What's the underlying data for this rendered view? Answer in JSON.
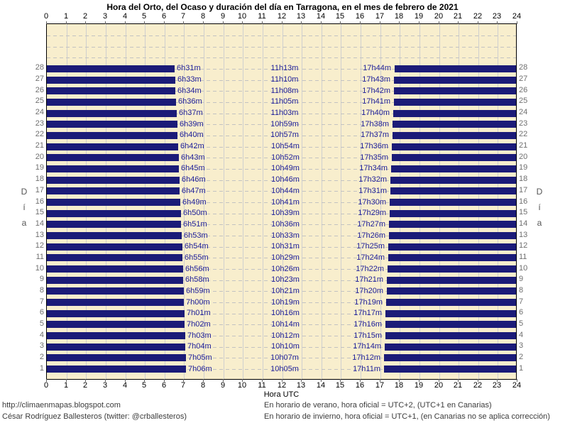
{
  "title": "Hora del Orto, del Ocaso y duración del día en Tarragona, en el mes de febrero de 2021",
  "axis": {
    "x_title_bottom": "Hora UTC",
    "side_label": "Día",
    "x_ticks": [
      0,
      1,
      2,
      3,
      4,
      5,
      6,
      7,
      8,
      9,
      10,
      11,
      12,
      13,
      14,
      15,
      16,
      17,
      18,
      19,
      20,
      21,
      22,
      23,
      24
    ]
  },
  "footer": {
    "url": "http://climaenmapas.blogspot.com",
    "author": "César Rodríguez Ballesteros (twitter: @crballesteros)",
    "note_summer": "En horario de verano, hora oficial = UTC+2, (UTC+1 en Canarias)",
    "note_winter": "En horario de invierno, hora oficial = UTC+1, (en Canarias no se aplica corrección)"
  },
  "colors": {
    "plot_background": "#f8eecd",
    "bar": "#1b1b78",
    "value_label": "#23239a",
    "grid_vertical": "#cfcfcf",
    "grid_horizontal_dash": "#c2c2c2",
    "side_numbers": "#6f6f6f",
    "axis_numbers": "#000000"
  },
  "chart_data": {
    "type": "bar",
    "orientation": "horizontal",
    "description": "Night-time bars from 0h to sunrise (orto) and from sunset (ocaso) to 24h for each day of February 2021 in Tarragona; gap between bars is daylight with its duration labelled at solar noon.",
    "x_range": [
      0,
      24
    ],
    "day_slots": 31,
    "days_shown": [
      1,
      28
    ],
    "grid": true,
    "rows": [
      {
        "day": 1,
        "orto": "7h06m",
        "duracion": "10h05m",
        "ocaso": "17h11m"
      },
      {
        "day": 2,
        "orto": "7h05m",
        "duracion": "10h07m",
        "ocaso": "17h12m"
      },
      {
        "day": 3,
        "orto": "7h04m",
        "duracion": "10h10m",
        "ocaso": "17h14m"
      },
      {
        "day": 4,
        "orto": "7h03m",
        "duracion": "10h12m",
        "ocaso": "17h15m"
      },
      {
        "day": 5,
        "orto": "7h02m",
        "duracion": "10h14m",
        "ocaso": "17h16m"
      },
      {
        "day": 6,
        "orto": "7h01m",
        "duracion": "10h16m",
        "ocaso": "17h17m"
      },
      {
        "day": 7,
        "orto": "7h00m",
        "duracion": "10h19m",
        "ocaso": "17h19m"
      },
      {
        "day": 8,
        "orto": "6h59m",
        "duracion": "10h21m",
        "ocaso": "17h20m"
      },
      {
        "day": 9,
        "orto": "6h58m",
        "duracion": "10h23m",
        "ocaso": "17h21m"
      },
      {
        "day": 10,
        "orto": "6h56m",
        "duracion": "10h26m",
        "ocaso": "17h22m"
      },
      {
        "day": 11,
        "orto": "6h55m",
        "duracion": "10h29m",
        "ocaso": "17h24m"
      },
      {
        "day": 12,
        "orto": "6h54m",
        "duracion": "10h31m",
        "ocaso": "17h25m"
      },
      {
        "day": 13,
        "orto": "6h53m",
        "duracion": "10h33m",
        "ocaso": "17h26m"
      },
      {
        "day": 14,
        "orto": "6h51m",
        "duracion": "10h36m",
        "ocaso": "17h27m"
      },
      {
        "day": 15,
        "orto": "6h50m",
        "duracion": "10h39m",
        "ocaso": "17h29m"
      },
      {
        "day": 16,
        "orto": "6h49m",
        "duracion": "10h41m",
        "ocaso": "17h30m"
      },
      {
        "day": 17,
        "orto": "6h47m",
        "duracion": "10h44m",
        "ocaso": "17h31m"
      },
      {
        "day": 18,
        "orto": "6h46m",
        "duracion": "10h46m",
        "ocaso": "17h32m"
      },
      {
        "day": 19,
        "orto": "6h45m",
        "duracion": "10h49m",
        "ocaso": "17h34m"
      },
      {
        "day": 20,
        "orto": "6h43m",
        "duracion": "10h52m",
        "ocaso": "17h35m"
      },
      {
        "day": 21,
        "orto": "6h42m",
        "duracion": "10h54m",
        "ocaso": "17h36m"
      },
      {
        "day": 22,
        "orto": "6h40m",
        "duracion": "10h57m",
        "ocaso": "17h37m"
      },
      {
        "day": 23,
        "orto": "6h39m",
        "duracion": "10h59m",
        "ocaso": "17h38m"
      },
      {
        "day": 24,
        "orto": "6h37m",
        "duracion": "11h03m",
        "ocaso": "17h40m"
      },
      {
        "day": 25,
        "orto": "6h36m",
        "duracion": "11h05m",
        "ocaso": "17h41m"
      },
      {
        "day": 26,
        "orto": "6h34m",
        "duracion": "11h08m",
        "ocaso": "17h42m"
      },
      {
        "day": 27,
        "orto": "6h33m",
        "duracion": "11h10m",
        "ocaso": "17h43m"
      },
      {
        "day": 28,
        "orto": "6h31m",
        "duracion": "11h13m",
        "ocaso": "17h44m"
      }
    ]
  }
}
